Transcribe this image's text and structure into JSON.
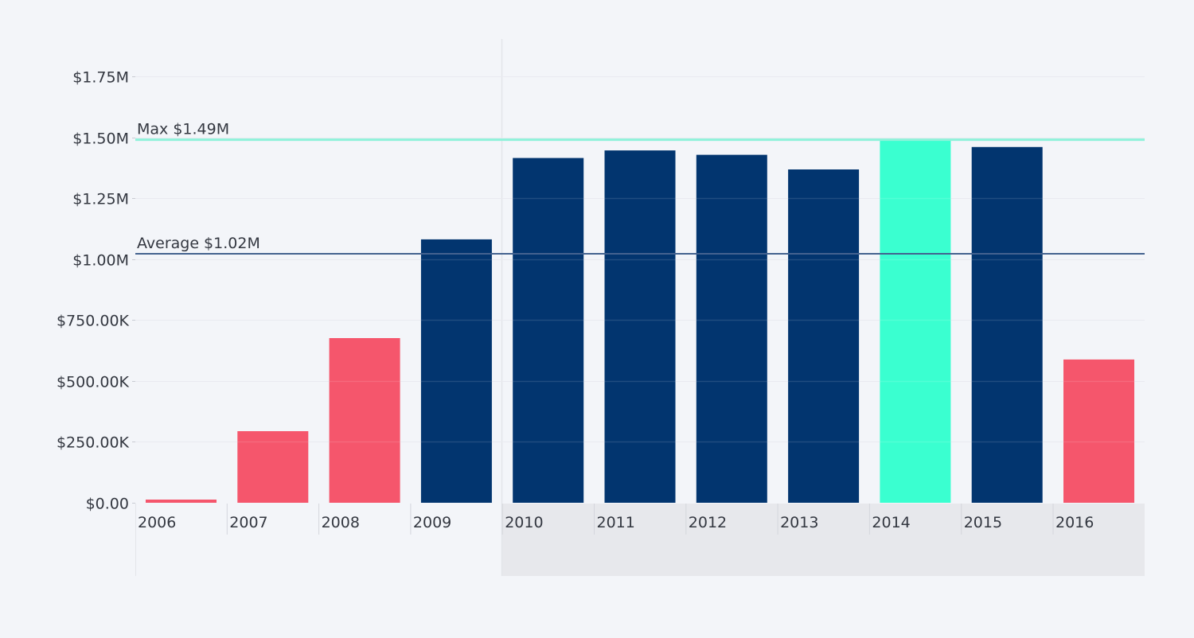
{
  "chart_data": {
    "type": "bar",
    "title": "",
    "xlabel": "",
    "ylabel": "",
    "categories": [
      "2006",
      "2007",
      "2008",
      "2009",
      "2010",
      "2011",
      "2012",
      "2013",
      "2014",
      "2015",
      "2016"
    ],
    "values": [
      13000,
      294000,
      676000,
      1081000,
      1415000,
      1446000,
      1428000,
      1368000,
      1490000,
      1460000,
      588000
    ],
    "ylim": [
      0,
      1750000
    ],
    "yticks": [
      0,
      250000,
      500000,
      750000,
      1000000,
      1250000,
      1500000,
      1750000
    ],
    "ytick_labels": [
      "$0.00",
      "$250.00K",
      "$500.00K",
      "$750.00K",
      "$1.00M",
      "$1.25M",
      "$1.50M",
      "$1.75M"
    ],
    "grid": true,
    "legend": null,
    "reference_lines": [
      {
        "name": "Max",
        "label": "Max $1.49M",
        "value": 1490000,
        "color": "#8ef2da"
      },
      {
        "name": "Average",
        "label": "Average $1.02M",
        "value": 1022000,
        "color": "#44628f"
      }
    ],
    "colors": {
      "below_average": "#f5566c",
      "above_average": "#02356f",
      "max": "#3affd0"
    },
    "highlighted_range": {
      "from": "2010",
      "to": "2016"
    }
  }
}
